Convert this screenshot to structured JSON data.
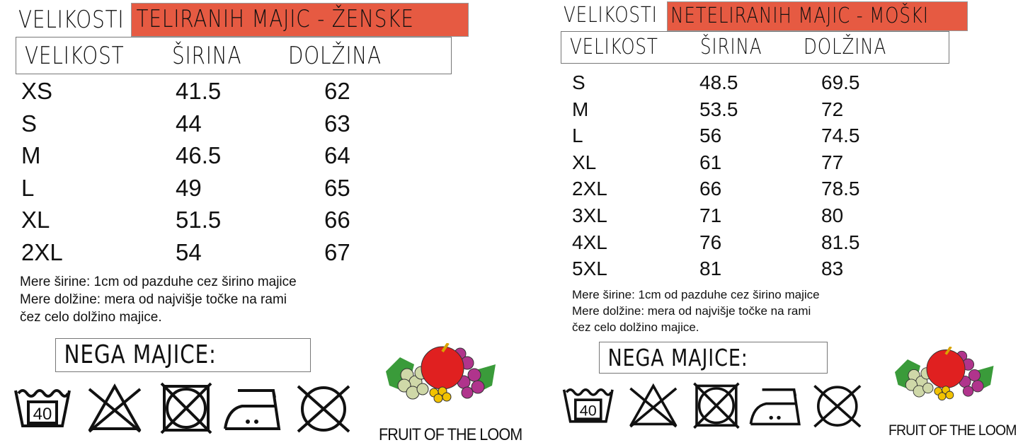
{
  "left": {
    "title_prefix": "VELIKOSTI",
    "title_highlight": "TELIRANIH MAJIC - ŽENSKE",
    "headers": [
      "VELIKOST",
      "ŠIRINA",
      "DOLŽINA"
    ],
    "rows": [
      [
        "XS",
        "41.5",
        "62"
      ],
      [
        "S",
        "44",
        "63"
      ],
      [
        "M",
        "46.5",
        "64"
      ],
      [
        "L",
        "49",
        "65"
      ],
      [
        "XL",
        "51.5",
        "66"
      ],
      [
        "2XL",
        "54",
        "67"
      ]
    ],
    "notes": [
      "Mere širine: 1cm od pazduhe cez širino majice",
      "Mere dolžine: mera od najvišje točke na rami",
      "čez celo dolžino majice."
    ],
    "care_title": "NEGA MAJICE:",
    "wash_temp": "40",
    "logo_text": "FRUIT OF THE LOOM"
  },
  "right": {
    "title_prefix": "VELIKOSTI",
    "title_highlight": "NETELIRANIH MAJIC - MOŠKI",
    "headers": [
      "VELIKOST",
      "ŠIRINA",
      "DOLŽINA"
    ],
    "rows": [
      [
        "S",
        "48.5",
        "69.5"
      ],
      [
        "M",
        "53.5",
        "72"
      ],
      [
        "L",
        "56",
        "74.5"
      ],
      [
        "XL",
        "61",
        "77"
      ],
      [
        "2XL",
        "66",
        "78.5"
      ],
      [
        "3XL",
        "71",
        "80"
      ],
      [
        "4XL",
        "76",
        "81.5"
      ],
      [
        "5XL",
        "81",
        "83"
      ]
    ],
    "notes": [
      "Mere širine: 1cm od pazduhe cez širino majice",
      "Mere dolžine: mera od najvišje točke na rami",
      "čez celo dolžino majice."
    ],
    "care_title": "NEGA MAJICE:",
    "wash_temp": "40",
    "logo_text": "FRUIT OF THE LOOM"
  },
  "care_icons": [
    "wash-40-icon",
    "no-bleach-icon",
    "no-tumble-dry-icon",
    "iron-medium-icon",
    "no-dry-clean-icon"
  ],
  "colors": {
    "highlight": "#e65a42"
  }
}
